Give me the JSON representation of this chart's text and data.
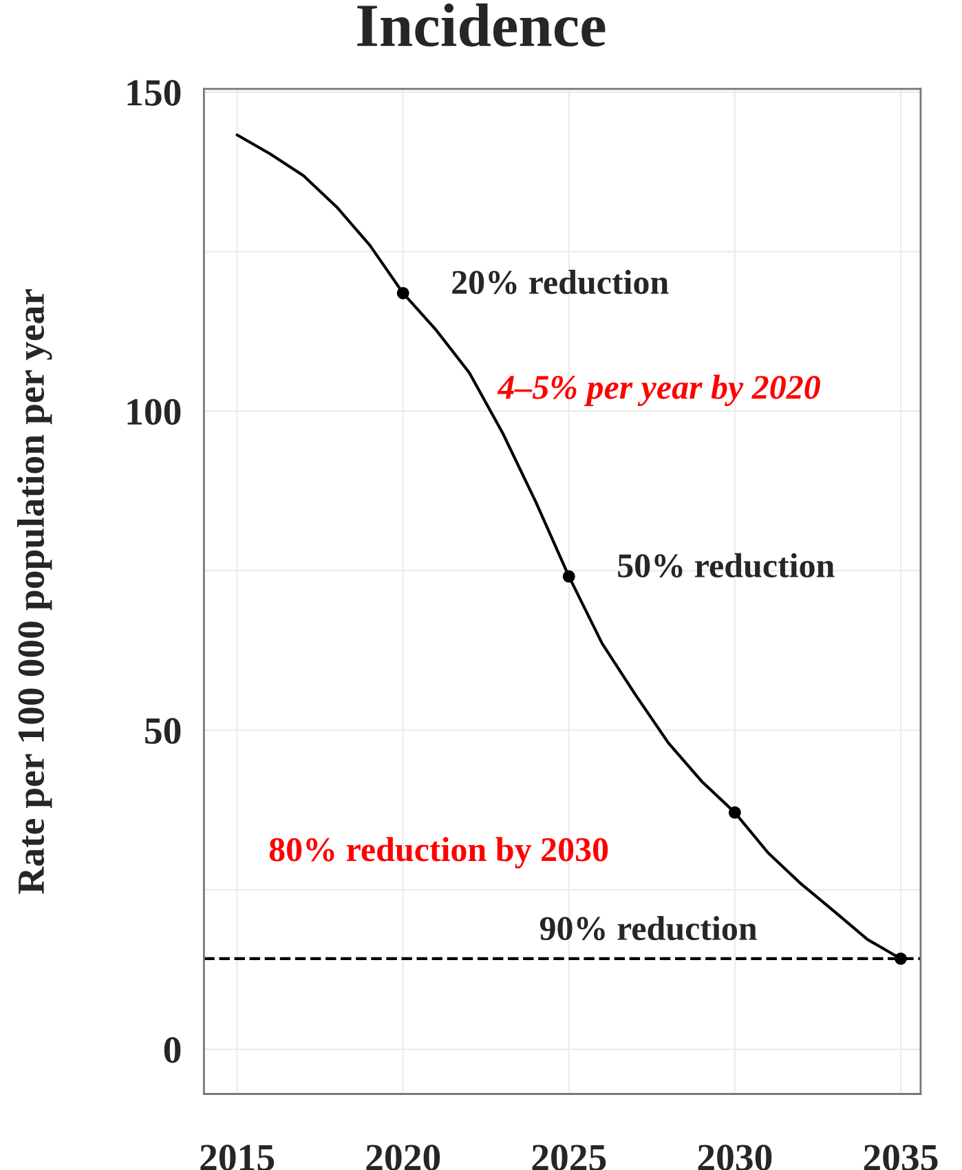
{
  "chart_data": {
    "type": "line",
    "title": "Incidence",
    "ylabel": "Rate per 100 000 population per year",
    "series": [
      {
        "color": "#000000",
        "x": [
          2015,
          2016,
          2017,
          2018,
          2019,
          2020,
          2021,
          2022,
          2023,
          2024,
          2025,
          2026,
          2027,
          2028,
          2029,
          2030,
          2031,
          2032,
          2033,
          2034,
          2035
        ],
        "values": [
          143.3,
          140.3,
          136.9,
          132,
          126,
          118.5,
          112.7,
          106,
          96.6,
          85.8,
          74.1,
          63.6,
          55.6,
          48,
          42,
          37.1,
          30.8,
          25.9,
          21.6,
          17.2,
          14.2
        ]
      },
      {
        "type": "scatter",
        "color": "#000000",
        "marker": "circle",
        "x": [
          2020,
          2025,
          2030,
          2035
        ],
        "values": [
          118.5,
          74.1,
          37.1,
          14.2
        ]
      }
    ],
    "xlim": [
      2014,
      2035.6
    ],
    "ylim": [
      -7,
      150.5
    ],
    "xticks": [
      2015,
      2020,
      2025,
      2030,
      2035
    ],
    "yticks": [
      0,
      {
        "value": 25,
        "label": null
      },
      50,
      {
        "value": 75,
        "label": null
      },
      100,
      {
        "value": 125,
        "label": null
      },
      150
    ],
    "grid": true,
    "ref_lines": [
      {
        "axis": "y",
        "value": 14.2,
        "label": "90% reduction",
        "color": "#000000",
        "line_style": "dashed"
      }
    ],
    "annotations": [
      {
        "text": "20% reduction",
        "x": 2020,
        "y": 118.5
      },
      {
        "text": "50% reduction",
        "x": 2025,
        "y": 74.1
      },
      "4–5% per year by 2020",
      "80% reduction by 2030"
    ]
  }
}
